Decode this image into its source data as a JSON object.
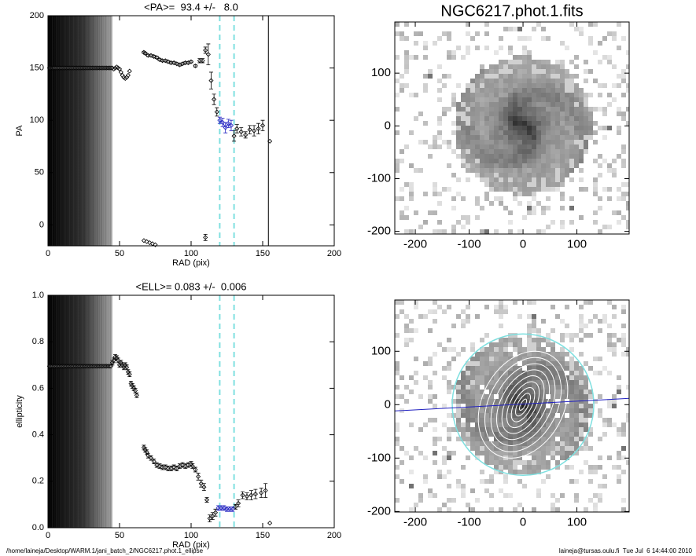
{
  "chart_data": [
    {
      "type": "scatter",
      "title": "<PA>=  93.4 +/-   8.0",
      "x_label": "RAD (pix)",
      "y_label": "PA",
      "xlim": [
        0,
        200
      ],
      "ylim": [
        -20,
        200
      ],
      "xticks": [
        0,
        50,
        100,
        150,
        200
      ],
      "yticks": [
        0,
        50,
        100,
        150,
        200
      ],
      "shaded_region": [
        0,
        45
      ],
      "vlines": [
        {
          "x": 120,
          "color": "#7fe0e0",
          "dashed": true
        },
        {
          "x": 130,
          "color": "#7fe0e0",
          "dashed": true
        },
        {
          "x": 154,
          "color": "#000000",
          "dashed": false
        }
      ],
      "series": [
        {
          "color": "#000000",
          "connect": false,
          "x": [
            1,
            2,
            3,
            4,
            5,
            6,
            7,
            8,
            9,
            10,
            11,
            12,
            13,
            14,
            15,
            16,
            17,
            18,
            19,
            20,
            21,
            22,
            23,
            24,
            25,
            26,
            27,
            28,
            29,
            30,
            31,
            32,
            33,
            34,
            35,
            36,
            37,
            38,
            39,
            40,
            41,
            42,
            43,
            44,
            45,
            46,
            47,
            48,
            49,
            50,
            51,
            52,
            53,
            54,
            55,
            56,
            57,
            67,
            68,
            70,
            72,
            74,
            76,
            78,
            80,
            82,
            84,
            86,
            88,
            90,
            92,
            94,
            96,
            98,
            100,
            103,
            106,
            108,
            110,
            112,
            114,
            116,
            118,
            130,
            132,
            135,
            138,
            141,
            144,
            147,
            150,
            155
          ],
          "values": [
            150,
            150,
            150,
            150,
            150,
            150,
            150,
            150,
            150,
            150,
            150,
            150,
            150,
            150,
            150,
            150,
            150,
            150,
            150,
            150,
            150,
            150,
            150,
            150,
            150,
            150,
            150,
            150,
            150,
            150,
            150,
            150,
            150,
            150,
            150,
            150,
            150,
            150,
            150,
            150,
            150,
            150,
            150,
            150,
            150,
            149,
            150,
            151,
            150,
            149,
            146,
            143,
            141,
            140,
            141,
            143,
            147,
            165,
            164,
            162,
            162,
            161,
            160,
            158,
            157,
            157,
            156,
            155,
            155,
            154,
            153,
            154,
            155,
            155,
            156,
            152,
            157,
            157,
            167,
            163,
            138,
            120,
            108,
            85,
            92,
            89,
            86,
            91,
            90,
            92,
            95,
            80
          ],
          "errors": [
            0,
            0,
            0,
            0,
            0,
            0,
            0,
            0,
            0,
            0,
            0,
            0,
            0,
            0,
            0,
            0,
            0,
            0,
            0,
            0,
            0,
            0,
            0,
            0,
            0,
            0,
            0,
            0,
            0,
            0,
            0,
            0,
            0,
            0,
            0,
            0,
            0,
            0,
            0,
            0,
            0,
            0,
            0,
            0,
            0,
            0,
            0,
            0,
            0,
            0,
            0,
            0,
            0,
            0,
            0,
            0,
            0,
            1,
            1,
            1,
            1,
            1,
            1,
            1,
            1,
            1,
            1,
            1,
            1,
            1,
            1,
            1,
            1,
            1,
            1,
            1,
            2,
            2,
            3,
            10,
            8,
            5,
            4,
            5,
            4,
            4,
            3,
            4,
            5,
            5,
            5,
            0
          ]
        },
        {
          "color": "#2020c0",
          "connect": true,
          "x": [
            120,
            122,
            124,
            126,
            128
          ],
          "values": [
            100,
            98,
            93,
            97,
            95
          ],
          "errors": [
            3,
            4,
            5,
            4,
            5
          ]
        },
        {
          "color": "#000000",
          "connect": false,
          "x": [
            67,
            69,
            71,
            73,
            75,
            110
          ],
          "values": [
            -15,
            -16,
            -17,
            -18,
            -19,
            -12
          ],
          "errors": [
            0,
            0,
            0,
            0,
            0,
            3
          ]
        }
      ]
    },
    {
      "type": "image",
      "title": "NGC6217.phot.1.fits",
      "overlay": false,
      "xlim": [
        -238,
        197
      ],
      "ylim": [
        -205,
        197
      ],
      "xticks": [
        -200,
        -100,
        0,
        100
      ],
      "yticks": [
        -200,
        -100,
        0,
        100
      ]
    },
    {
      "type": "scatter",
      "title": "<ELL>= 0.083 +/-  0.006",
      "x_label": "RAD (pix)",
      "y_label": "ellipticity",
      "xlim": [
        0,
        200
      ],
      "ylim": [
        0,
        1
      ],
      "xticks": [
        0,
        50,
        100,
        150,
        200
      ],
      "yticks": [
        {
          "value": 0,
          "label": "0.0"
        },
        0.2,
        0.4,
        0.6,
        0.8,
        {
          "value": 1,
          "label": "1.0"
        }
      ],
      "shaded_region": [
        0,
        45
      ],
      "vlines": [
        {
          "x": 120,
          "color": "#7fe0e0",
          "dashed": true
        },
        {
          "x": 130,
          "color": "#7fe0e0",
          "dashed": true
        }
      ],
      "series": [
        {
          "color": "#000000",
          "connect": false,
          "x": [
            1,
            2,
            3,
            4,
            5,
            6,
            7,
            8,
            9,
            10,
            11,
            12,
            13,
            14,
            15,
            16,
            17,
            18,
            19,
            20,
            21,
            22,
            23,
            24,
            25,
            26,
            27,
            28,
            29,
            30,
            31,
            32,
            33,
            34,
            35,
            36,
            37,
            38,
            39,
            40,
            41,
            42,
            43,
            44,
            45,
            46,
            47,
            48,
            49,
            50,
            51,
            52,
            53,
            54,
            55,
            56,
            57,
            58,
            59,
            60,
            61,
            62,
            67,
            68,
            69,
            70,
            72,
            74,
            76,
            78,
            80,
            82,
            84,
            86,
            88,
            90,
            92,
            94,
            96,
            98,
            100,
            101,
            103,
            105,
            107,
            109,
            111,
            113,
            115,
            117,
            131,
            133,
            136,
            139,
            142,
            145,
            149,
            152,
            155
          ],
          "values": [
            0.695,
            0.695,
            0.695,
            0.695,
            0.695,
            0.695,
            0.695,
            0.695,
            0.695,
            0.695,
            0.695,
            0.695,
            0.695,
            0.695,
            0.695,
            0.695,
            0.695,
            0.695,
            0.695,
            0.695,
            0.695,
            0.695,
            0.695,
            0.695,
            0.695,
            0.695,
            0.695,
            0.695,
            0.695,
            0.695,
            0.695,
            0.695,
            0.695,
            0.695,
            0.695,
            0.695,
            0.695,
            0.695,
            0.695,
            0.695,
            0.695,
            0.695,
            0.695,
            0.695,
            0.71,
            0.72,
            0.735,
            0.73,
            0.72,
            0.7,
            0.71,
            0.7,
            0.69,
            0.7,
            0.69,
            0.67,
            0.66,
            0.62,
            0.61,
            0.6,
            0.59,
            0.57,
            0.345,
            0.335,
            0.325,
            0.31,
            0.3,
            0.285,
            0.27,
            0.265,
            0.26,
            0.26,
            0.255,
            0.255,
            0.26,
            0.255,
            0.265,
            0.27,
            0.265,
            0.27,
            0.275,
            0.265,
            0.25,
            0.22,
            0.19,
            0.175,
            0.12,
            0.04,
            0.05,
            0.065,
            0.09,
            0.105,
            0.14,
            0.135,
            0.14,
            0.145,
            0.15,
            0.16,
            0.02
          ],
          "errors": [
            0,
            0,
            0,
            0,
            0,
            0,
            0,
            0,
            0,
            0,
            0,
            0,
            0,
            0,
            0,
            0,
            0,
            0,
            0,
            0,
            0,
            0,
            0,
            0,
            0,
            0,
            0,
            0,
            0,
            0,
            0,
            0,
            0,
            0,
            0,
            0,
            0,
            0,
            0,
            0,
            0,
            0,
            0,
            0,
            0.01,
            0.01,
            0.01,
            0.01,
            0.01,
            0.01,
            0.01,
            0.01,
            0.01,
            0.01,
            0.01,
            0.01,
            0.01,
            0.01,
            0.01,
            0.01,
            0.01,
            0.01,
            0.01,
            0.01,
            0.01,
            0.01,
            0.01,
            0.01,
            0.01,
            0.01,
            0.01,
            0.01,
            0.01,
            0.01,
            0.01,
            0.01,
            0.01,
            0.01,
            0.01,
            0.01,
            0.01,
            0.01,
            0.01,
            0.015,
            0.015,
            0.015,
            0.01,
            0.015,
            0.015,
            0.015,
            0.01,
            0.015,
            0.015,
            0.015,
            0.02,
            0.02,
            0.02,
            0.03,
            0
          ]
        },
        {
          "color": "#2020c0",
          "connect": true,
          "x": [
            119,
            121,
            123,
            125,
            127,
            129
          ],
          "values": [
            0.085,
            0.085,
            0.085,
            0.08,
            0.08,
            0.08
          ],
          "errors": [
            0.01,
            0.01,
            0.01,
            0.01,
            0.01,
            0.01
          ]
        }
      ]
    },
    {
      "type": "image",
      "overlay": true,
      "xlim": [
        -238,
        197
      ],
      "ylim": [
        -201,
        196
      ],
      "xticks": [
        -200,
        -100,
        0,
        100
      ],
      "yticks": [
        -200,
        -100,
        0,
        100
      ]
    }
  ],
  "footer": {
    "left": "/home/laineja/Desktop/WARM.1/jani_batch_2/NGC6217.phot.1_ellipse",
    "right": "laineja@tursas.oulu.fi  Tue Jul  6 14:44:00 2010"
  }
}
